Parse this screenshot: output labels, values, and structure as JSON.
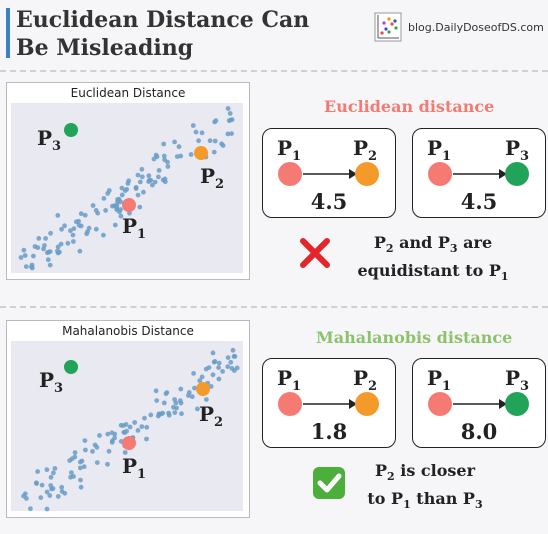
{
  "header": {
    "title_line1": "Euclidean Distance Can",
    "title_line2": "Be Misleading",
    "brand_icon": "scatter-logo-icon",
    "brand_text": "blog.DailyDoseofDS.com"
  },
  "colors": {
    "accent_blue": "#3b82c4",
    "point_p1": "#f47a73",
    "point_p2": "#f39a2b",
    "point_p3": "#22a35a",
    "scatter_dots": "#6a9cc8",
    "euclid_heading": "#f27b72",
    "mahal_heading": "#8cc26a",
    "cross": "#e4262b",
    "check": "#4caf3c"
  },
  "points": {
    "p1": "P",
    "p1_sub": "1",
    "p2": "P",
    "p2_sub": "2",
    "p3": "P",
    "p3_sub": "3"
  },
  "euclidean": {
    "plot_title": "Euclidean Distance",
    "heading": "Euclidean distance",
    "pair_a_value": "4.5",
    "pair_b_value": "4.5",
    "verdict_icon": "cross-icon",
    "verdict_line1_a": "P",
    "verdict_line1_sub_a": "2",
    "verdict_line1_mid": " and P",
    "verdict_line1_sub_b": "3",
    "verdict_line1_end": " are",
    "verdict_line2": "equidistant to P",
    "verdict_line2_sub": "1"
  },
  "mahalanobis": {
    "plot_title": "Mahalanobis Distance",
    "heading": "Mahalanobis distance",
    "pair_a_value": "1.8",
    "pair_b_value": "8.0",
    "verdict_icon": "check-icon",
    "verdict_line1_a": "P",
    "verdict_line1_sub_a": "2",
    "verdict_line1_end": " is closer",
    "verdict_line2": "to P",
    "verdict_line2_sub": "1",
    "verdict_line2_mid": " than P",
    "verdict_line2_sub_b": "3"
  }
}
